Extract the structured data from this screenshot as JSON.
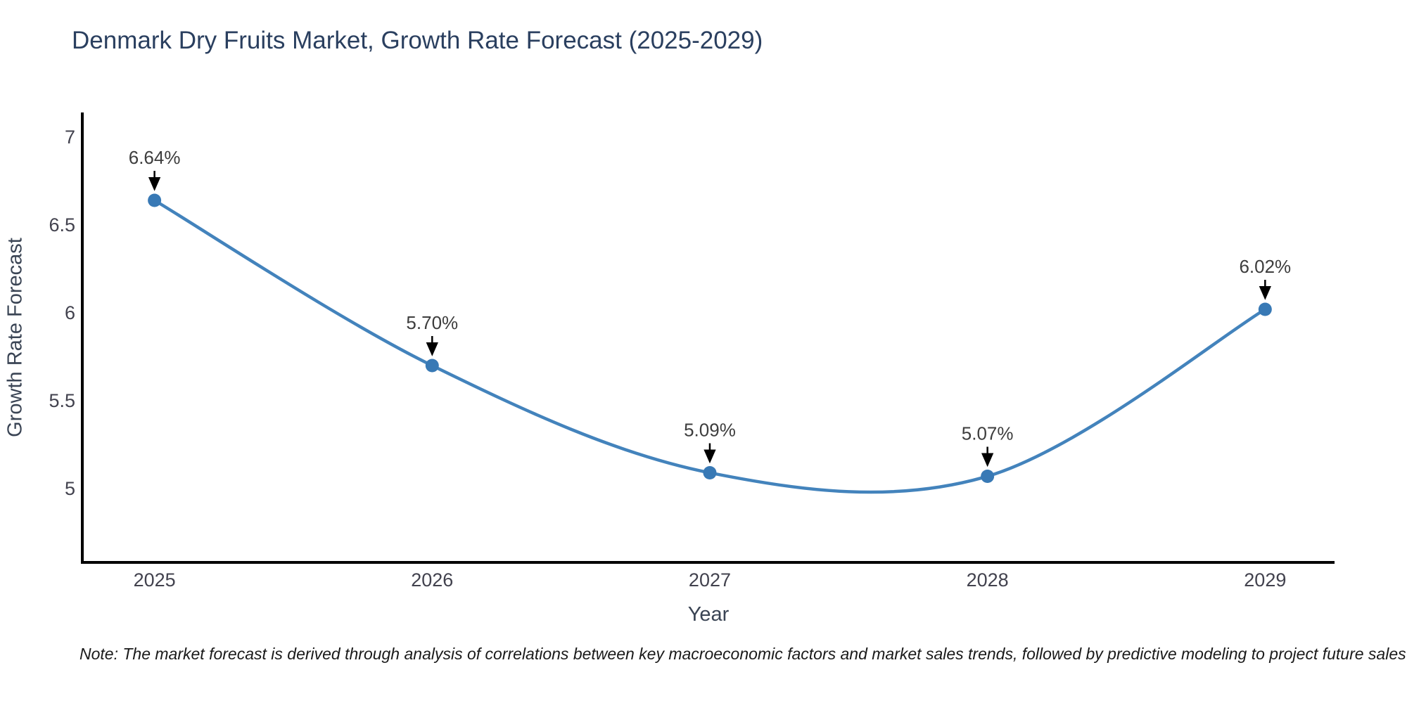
{
  "title": "Denmark Dry Fruits Market, Growth Rate Forecast (2025-2029)",
  "note": "Note: The market forecast is derived through analysis of correlations between key macroeconomic factors and market sales trends, followed by predictive modeling to project future sales",
  "chart_data": {
    "type": "line",
    "line_shape": "spline",
    "x": [
      2025,
      2026,
      2027,
      2028,
      2029
    ],
    "values": [
      6.64,
      5.7,
      5.09,
      5.07,
      6.02
    ],
    "point_labels": [
      "6.64%",
      "5.70%",
      "5.09%",
      "5.07%",
      "6.02%"
    ],
    "title": "Denmark Dry Fruits Market, Growth Rate Forecast (2025-2029)",
    "xlabel": "Year",
    "ylabel": "Growth Rate Forecast",
    "xtick_labels": [
      "2025",
      "2026",
      "2027",
      "2028",
      "2029"
    ],
    "ytick_values": [
      5,
      5.5,
      6,
      6.5,
      7
    ],
    "ytick_labels": [
      "5",
      "5.5",
      "6",
      "6.5",
      "7"
    ],
    "xlim": [
      2024.74,
      2029.25
    ],
    "ylim": [
      4.58,
      7.14
    ],
    "grid": false,
    "legend": "none",
    "colors": {
      "line": "#4383bc",
      "marker": "#3879b5",
      "axis": "#000000",
      "title": "#2a3f5f",
      "tick": "#42424e",
      "annotation": "#3d3d3d",
      "arrow": "#000000"
    }
  }
}
